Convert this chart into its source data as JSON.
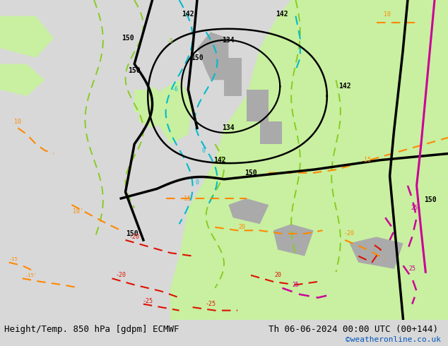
{
  "title_left": "Height/Temp. 850 hPa [gdpm] ECMWF",
  "title_right": "Th 06-06-2024 00:00 UTC (00+144)",
  "credit": "©weatheronline.co.uk",
  "credit_color": "#0055bb",
  "fig_width": 6.34,
  "fig_height": 4.9,
  "dpi": 100,
  "title_fontsize": 9,
  "credit_fontsize": 8,
  "sea_color": "#d8d8d8",
  "land_green": "#c8f0a0",
  "land_gray": "#aaaaaa",
  "land_green2": "#b8e890",
  "contour_black_lw": 2.4,
  "contour_green_color": "#88cc22",
  "contour_cyan_color": "#00bbcc",
  "contour_orange_color": "#ff8800",
  "contour_red_color": "#dd1100",
  "contour_magenta_color": "#cc0099",
  "label_fontsize": 7
}
